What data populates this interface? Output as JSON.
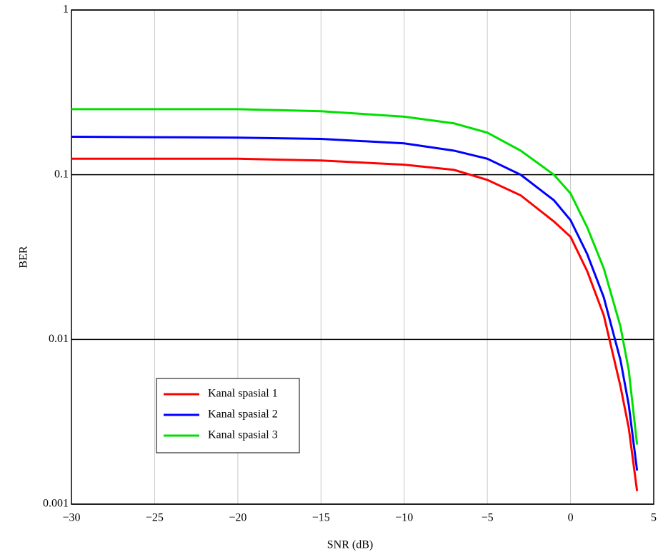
{
  "chart_data": {
    "type": "line",
    "x_label": "SNR (dB)",
    "y_label": "BER",
    "x": [
      -30,
      -25,
      -20,
      -15,
      -10,
      -7,
      -5,
      -3,
      -1,
      0,
      1,
      2,
      3,
      3.5,
      4
    ],
    "series": [
      {
        "name": "Kanal spasial 1",
        "color": "#ff0000",
        "values": [
          0.125,
          0.125,
          0.125,
          0.122,
          0.115,
          0.107,
          0.093,
          0.075,
          0.052,
          0.042,
          0.026,
          0.014,
          0.0052,
          0.0029,
          0.0012
        ]
      },
      {
        "name": "Kanal spasial 2",
        "color": "#0000ff",
        "values": [
          0.17,
          0.169,
          0.168,
          0.165,
          0.155,
          0.14,
          0.125,
          0.1,
          0.07,
          0.053,
          0.033,
          0.018,
          0.0075,
          0.004,
          0.0016
        ]
      },
      {
        "name": "Kanal spasial 3",
        "color": "#00e000",
        "values": [
          0.25,
          0.25,
          0.25,
          0.243,
          0.225,
          0.205,
          0.18,
          0.14,
          0.1,
          0.077,
          0.048,
          0.027,
          0.012,
          0.0065,
          0.0023
        ]
      }
    ],
    "xlim": [
      -30,
      5
    ],
    "xticks": [
      {
        "value": -30,
        "label": "−30"
      },
      {
        "value": -25,
        "label": "−25"
      },
      {
        "value": -20,
        "label": "−20"
      },
      {
        "value": -15,
        "label": "−15"
      },
      {
        "value": -10,
        "label": "−10"
      },
      {
        "value": -5,
        "label": "−5"
      },
      0,
      5
    ],
    "ylim": [
      0.001,
      1
    ],
    "yticks": [
      0.001,
      0.01,
      0.1,
      1
    ],
    "y_scale": "log",
    "grid": true,
    "legend_position": "lower-left"
  }
}
